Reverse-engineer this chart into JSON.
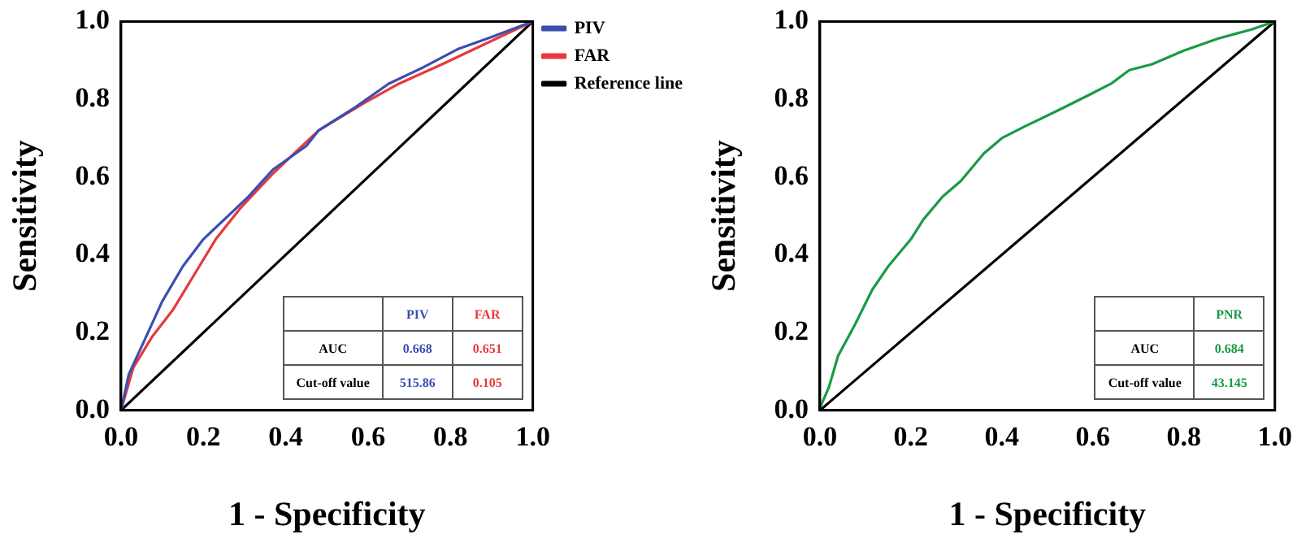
{
  "chart_data": [
    {
      "type": "line",
      "xlabel": "1 - Specificity",
      "ylabel": "Sensitivity",
      "xlim": [
        0,
        1
      ],
      "ylim": [
        0,
        1
      ],
      "xticks": [
        {
          "value": 0,
          "label": "0.0"
        },
        {
          "value": 0.2,
          "label": "0.2"
        },
        {
          "value": 0.4,
          "label": "0.4"
        },
        {
          "value": 0.6,
          "label": "0.6"
        },
        {
          "value": 0.8,
          "label": "0.8"
        },
        {
          "value": 1,
          "label": "1.0"
        }
      ],
      "yticks": [
        {
          "value": 0,
          "label": "0.0"
        },
        {
          "value": 0.2,
          "label": "0.2"
        },
        {
          "value": 0.4,
          "label": "0.4"
        },
        {
          "value": 0.6,
          "label": "0.6"
        },
        {
          "value": 0.8,
          "label": "0.8"
        },
        {
          "value": 1,
          "label": "1.0"
        }
      ],
      "grid": false,
      "legend": "top right",
      "marker": "none",
      "line_style": "solid",
      "series": [
        {
          "name": "PIV",
          "color": "#3a4fb0",
          "x": [
            0,
            0.019,
            0.057,
            0.1,
            0.15,
            0.2,
            0.27,
            0.31,
            0.37,
            0.45,
            0.48,
            0.57,
            0.65,
            0.73,
            0.82,
            0.9,
            1
          ],
          "values": [
            0,
            0.093,
            0.18,
            0.28,
            0.37,
            0.44,
            0.51,
            0.55,
            0.62,
            0.68,
            0.72,
            0.78,
            0.84,
            0.88,
            0.93,
            0.96,
            1
          ]
        },
        {
          "name": "FAR",
          "color": "#e8383d",
          "x": [
            0,
            0.03,
            0.076,
            0.127,
            0.19,
            0.23,
            0.29,
            0.37,
            0.48,
            0.59,
            0.675,
            0.78,
            0.9,
            1
          ],
          "values": [
            0,
            0.11,
            0.19,
            0.26,
            0.37,
            0.44,
            0.52,
            0.61,
            0.72,
            0.79,
            0.84,
            0.89,
            0.95,
            1
          ]
        },
        {
          "name": "Reference line",
          "color": "#000000",
          "x": [
            0,
            1
          ],
          "values": [
            0,
            1
          ]
        }
      ],
      "annotations": [
        "PIV",
        "FAR",
        "AUC",
        "0.668",
        "0.651",
        "Cut-off value",
        "515.86",
        "0.105"
      ]
    },
    {
      "type": "line",
      "xlabel": "1 - Specificity",
      "ylabel": "Sensitivity",
      "xlim": [
        0,
        1
      ],
      "ylim": [
        0,
        1
      ],
      "xticks": [
        {
          "value": 0,
          "label": "0.0"
        },
        {
          "value": 0.2,
          "label": "0.2"
        },
        {
          "value": 0.4,
          "label": "0.4"
        },
        {
          "value": 0.6,
          "label": "0.6"
        },
        {
          "value": 0.8,
          "label": "0.8"
        },
        {
          "value": 1,
          "label": "1.0"
        }
      ],
      "yticks": [
        {
          "value": 0,
          "label": "0.0"
        },
        {
          "value": 0.2,
          "label": "0.2"
        },
        {
          "value": 0.4,
          "label": "0.4"
        },
        {
          "value": 0.6,
          "label": "0.6"
        },
        {
          "value": 0.8,
          "label": "0.8"
        },
        {
          "value": 1,
          "label": "1.0"
        }
      ],
      "grid": false,
      "marker": "none",
      "line_style": "solid",
      "series": [
        {
          "color": "#1a9a48",
          "x": [
            0,
            0.02,
            0.04,
            0.077,
            0.115,
            0.15,
            0.2,
            0.227,
            0.27,
            0.31,
            0.36,
            0.4,
            0.45,
            0.53,
            0.59,
            0.64,
            0.68,
            0.73,
            0.8,
            0.875,
            0.95,
            1
          ],
          "values": [
            0.006,
            0.06,
            0.14,
            0.22,
            0.31,
            0.37,
            0.44,
            0.49,
            0.55,
            0.59,
            0.66,
            0.7,
            0.73,
            0.775,
            0.81,
            0.84,
            0.875,
            0.89,
            0.925,
            0.956,
            0.98,
            1
          ]
        },
        {
          "color": "#000000",
          "x": [
            0,
            1
          ],
          "values": [
            0,
            1
          ]
        }
      ],
      "annotations": [
        "PNR",
        "AUC",
        "0.684",
        "Cut-off value",
        "43.145"
      ]
    }
  ]
}
